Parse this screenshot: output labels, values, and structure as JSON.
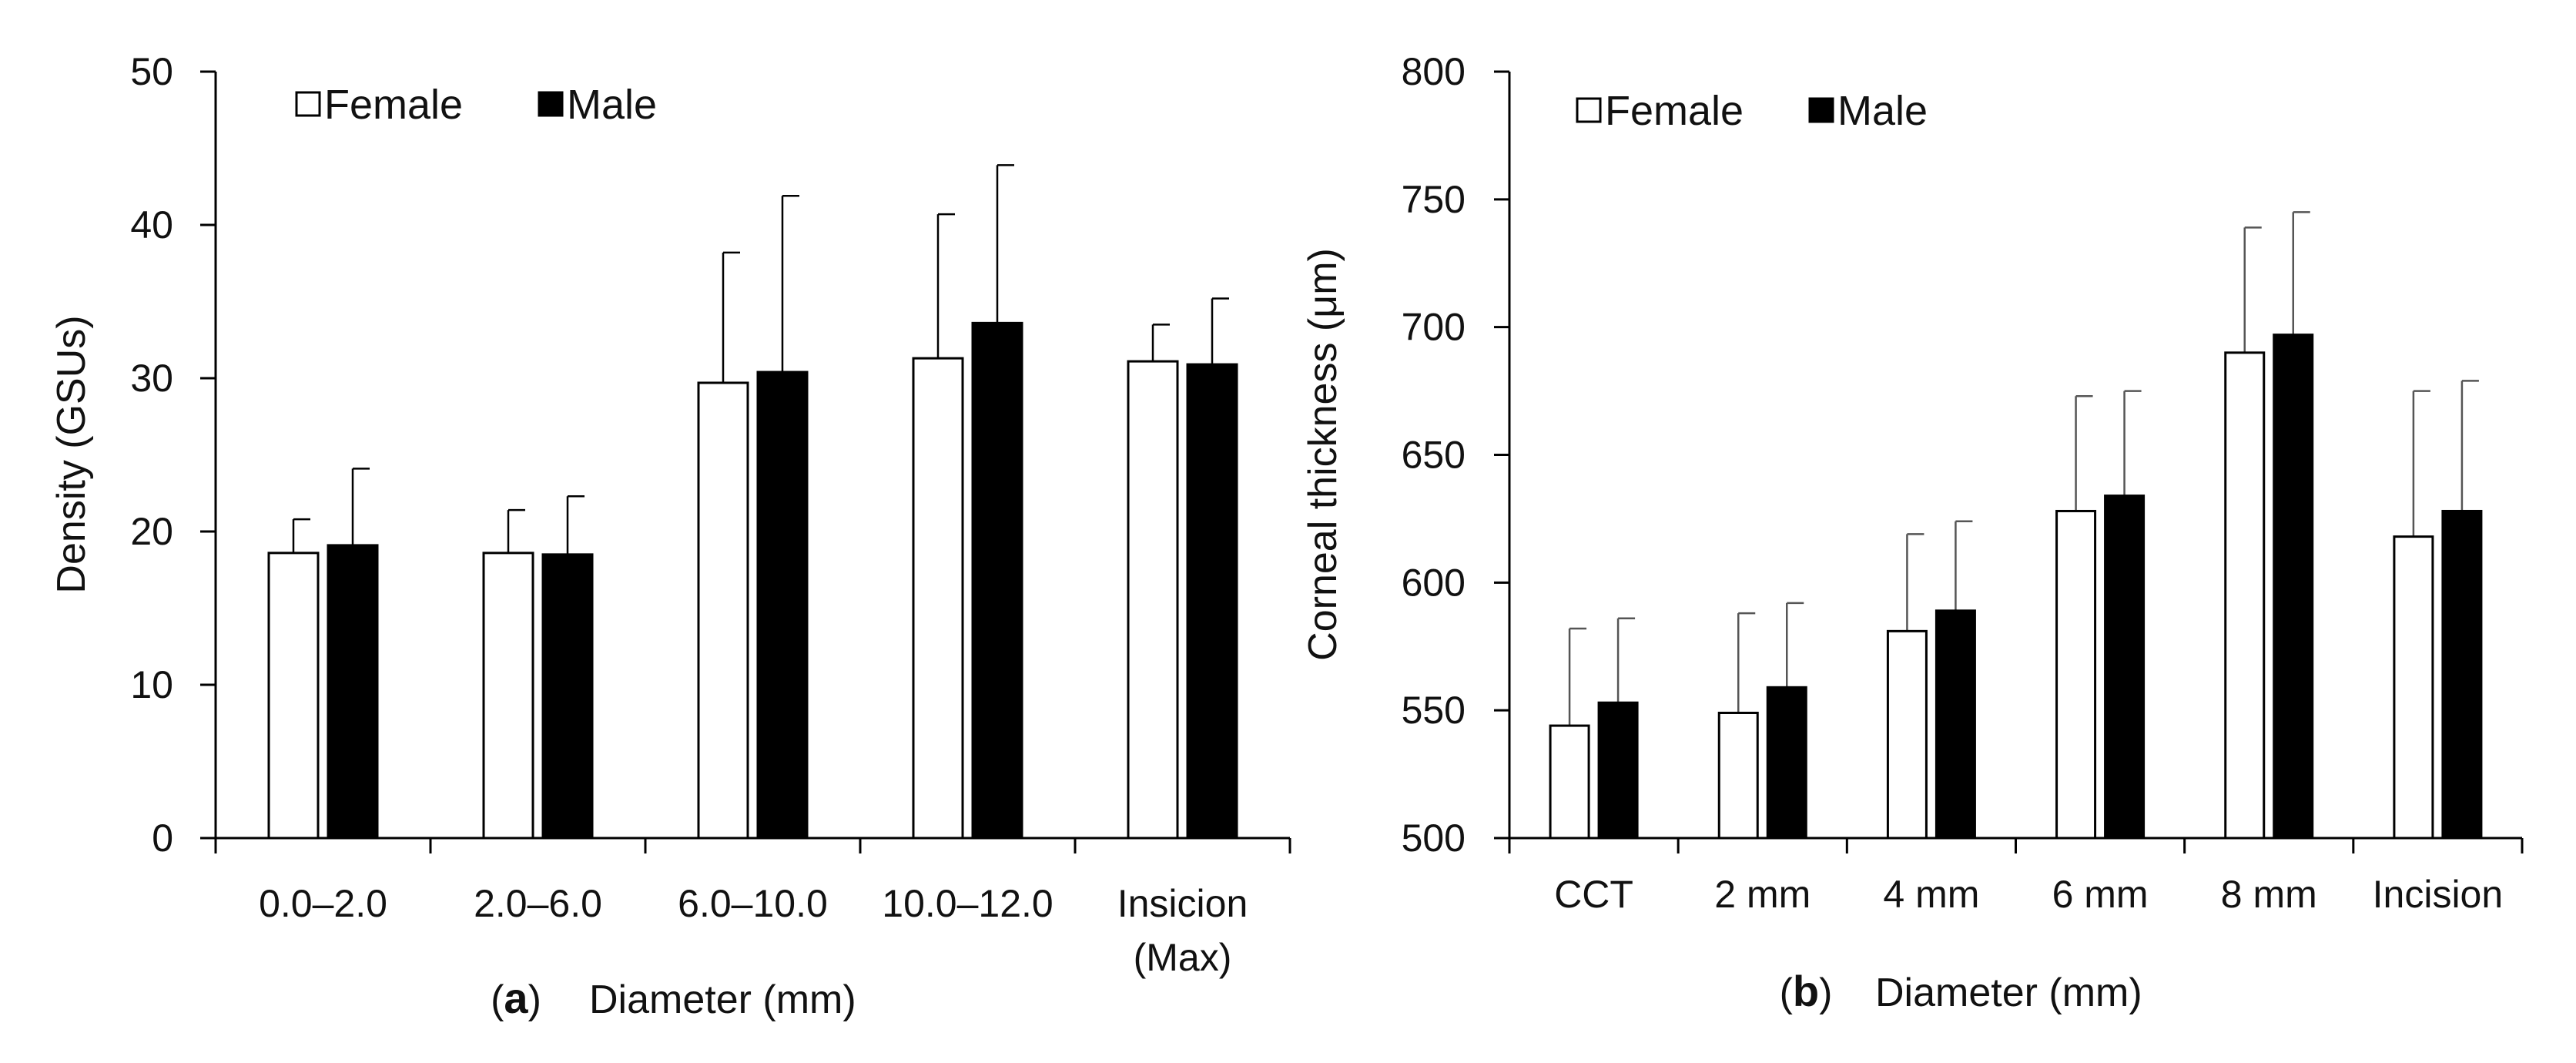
{
  "chart_data": [
    {
      "panel": "a",
      "type": "bar",
      "title": "",
      "panel_label": "(a)",
      "panel_letter": "a",
      "xlabel": "Diameter (mm)",
      "ylabel": "Density (GSUs)",
      "ylim": [
        0,
        50
      ],
      "yticks": [
        0,
        10,
        20,
        30,
        40,
        50
      ],
      "ytick_labels": [
        "0",
        "10",
        "20",
        "30",
        "40",
        "50"
      ],
      "grid": false,
      "legend_position": "top-left",
      "categories": [
        [
          "0.0–2.0"
        ],
        [
          "2.0–6.0"
        ],
        [
          "6.0–10.0"
        ],
        [
          "10.0–12.0"
        ],
        [
          "Insicion",
          "(Max)"
        ]
      ],
      "series": [
        {
          "name": "Female",
          "fill": "#ffffff",
          "values": [
            18.6,
            18.6,
            29.7,
            31.3,
            31.1
          ],
          "error": [
            2.2,
            2.8,
            8.5,
            9.4,
            2.4
          ]
        },
        {
          "name": "Male",
          "fill": "#000000",
          "values": [
            19.1,
            18.5,
            30.4,
            33.6,
            30.9
          ],
          "error": [
            5.0,
            3.8,
            11.5,
            10.3,
            4.3
          ]
        }
      ]
    },
    {
      "panel": "b",
      "type": "bar",
      "title": "",
      "panel_label": "(b)",
      "panel_letter": "b",
      "xlabel": "Diameter (mm)",
      "ylabel": "Corneal thickness (μm)",
      "ylim": [
        500,
        800
      ],
      "yticks": [
        500,
        550,
        600,
        650,
        700,
        750,
        800
      ],
      "ytick_labels": [
        "500",
        "550",
        "600",
        "650",
        "700",
        "750",
        "800"
      ],
      "grid": false,
      "legend_position": "top-left",
      "categories": [
        [
          "CCT"
        ],
        [
          "2 mm"
        ],
        [
          "4 mm"
        ],
        [
          "6 mm"
        ],
        [
          "8 mm"
        ],
        [
          "Incision"
        ]
      ],
      "series": [
        {
          "name": "Female",
          "fill": "#ffffff",
          "values": [
            544,
            549,
            581,
            628,
            690,
            618
          ],
          "error": [
            38,
            39,
            38,
            45,
            49,
            57
          ]
        },
        {
          "name": "Male",
          "fill": "#000000",
          "values": [
            553,
            559,
            589,
            634,
            697,
            628
          ],
          "error": [
            33,
            33,
            35,
            41,
            48,
            51
          ]
        }
      ]
    }
  ]
}
